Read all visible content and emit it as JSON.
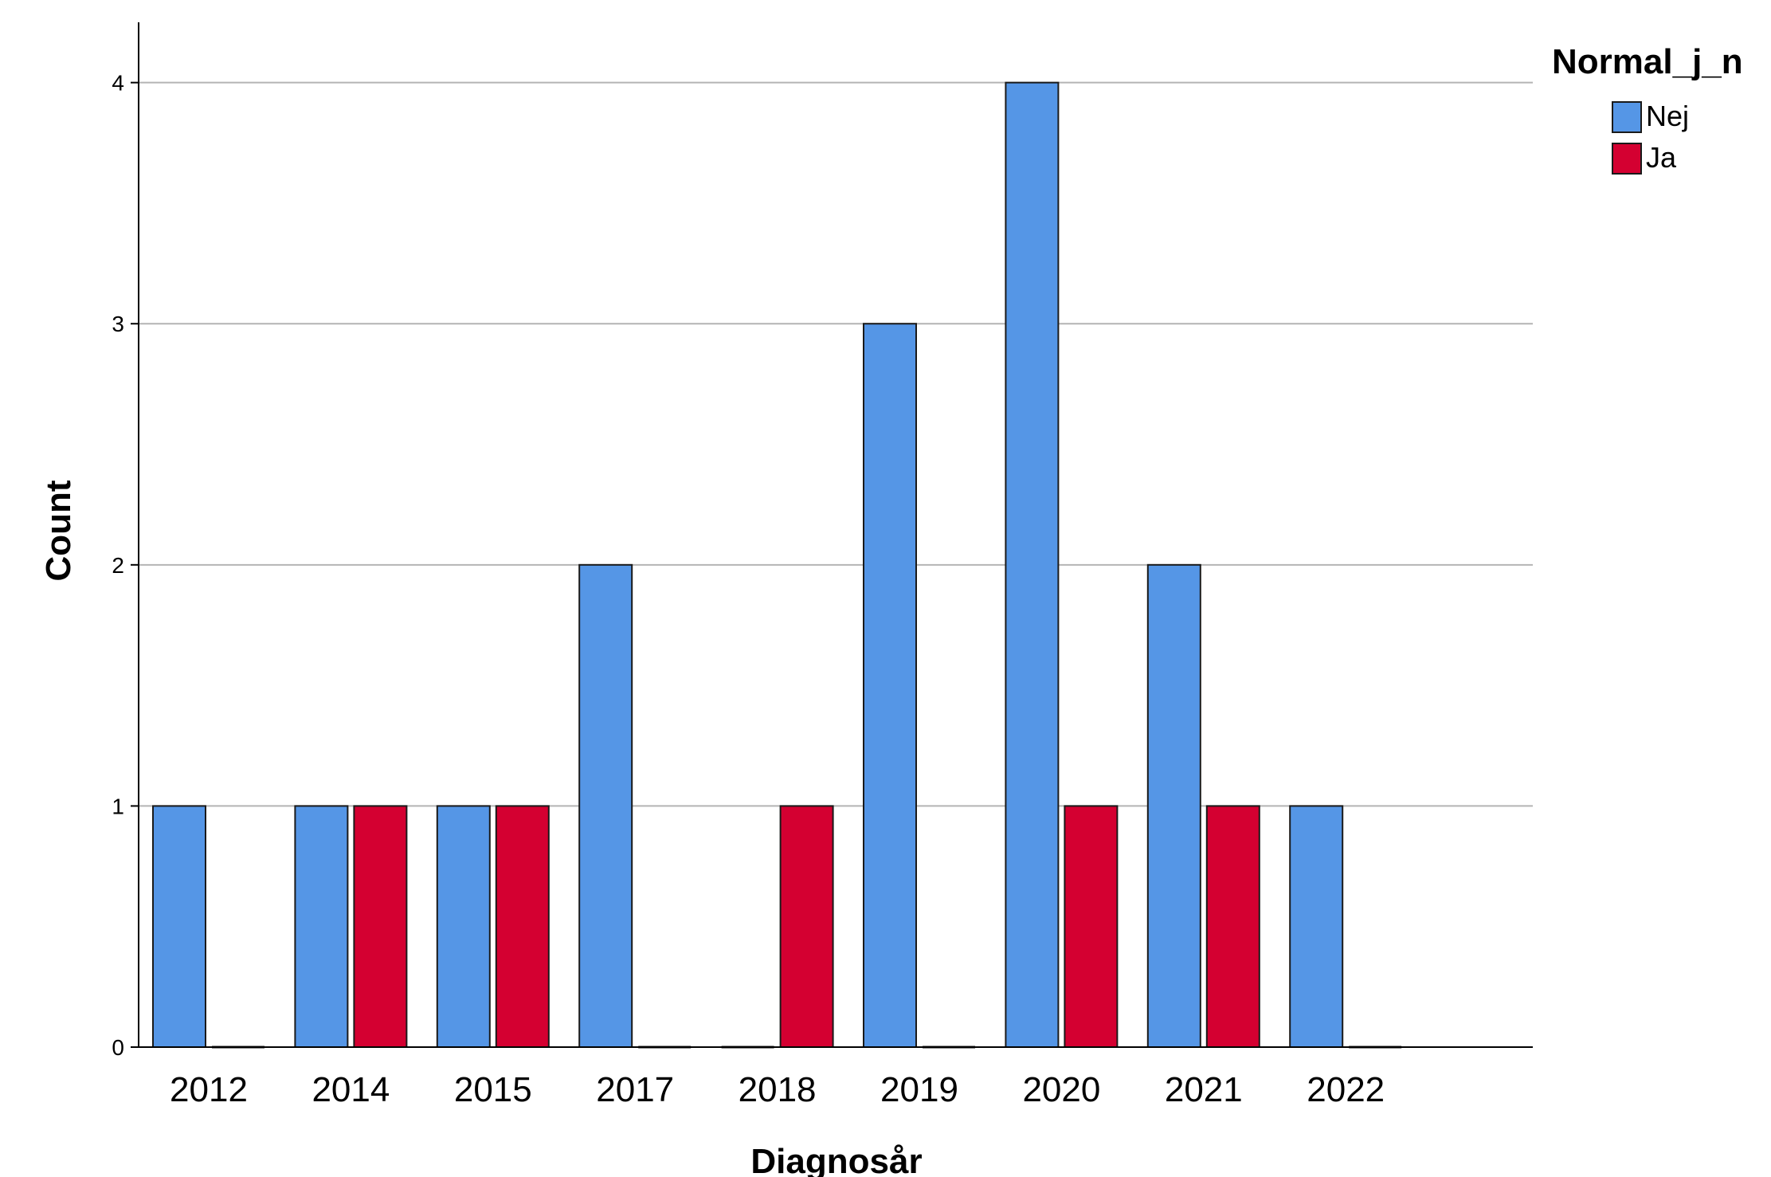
{
  "chart_data": {
    "type": "bar",
    "categories": [
      "2012",
      "2014",
      "2015",
      "2017",
      "2018",
      "2019",
      "2020",
      "2021",
      "2022"
    ],
    "series": [
      {
        "name": "Nej",
        "color": "#5596E6",
        "values": [
          1,
          1,
          1,
          2,
          0,
          3,
          4,
          2,
          1
        ]
      },
      {
        "name": "Ja",
        "color": "#D40031",
        "values": [
          0,
          1,
          1,
          0,
          1,
          0,
          1,
          1,
          0
        ]
      }
    ],
    "xlabel": "Diagnosår",
    "ylabel": "Count",
    "ylim": [
      0,
      4.25
    ],
    "yticks": [
      "0",
      "1",
      "2",
      "3",
      "4"
    ],
    "legend_title": "Normal_j_n",
    "legend_position": "top-right",
    "grid": "horizontal"
  }
}
